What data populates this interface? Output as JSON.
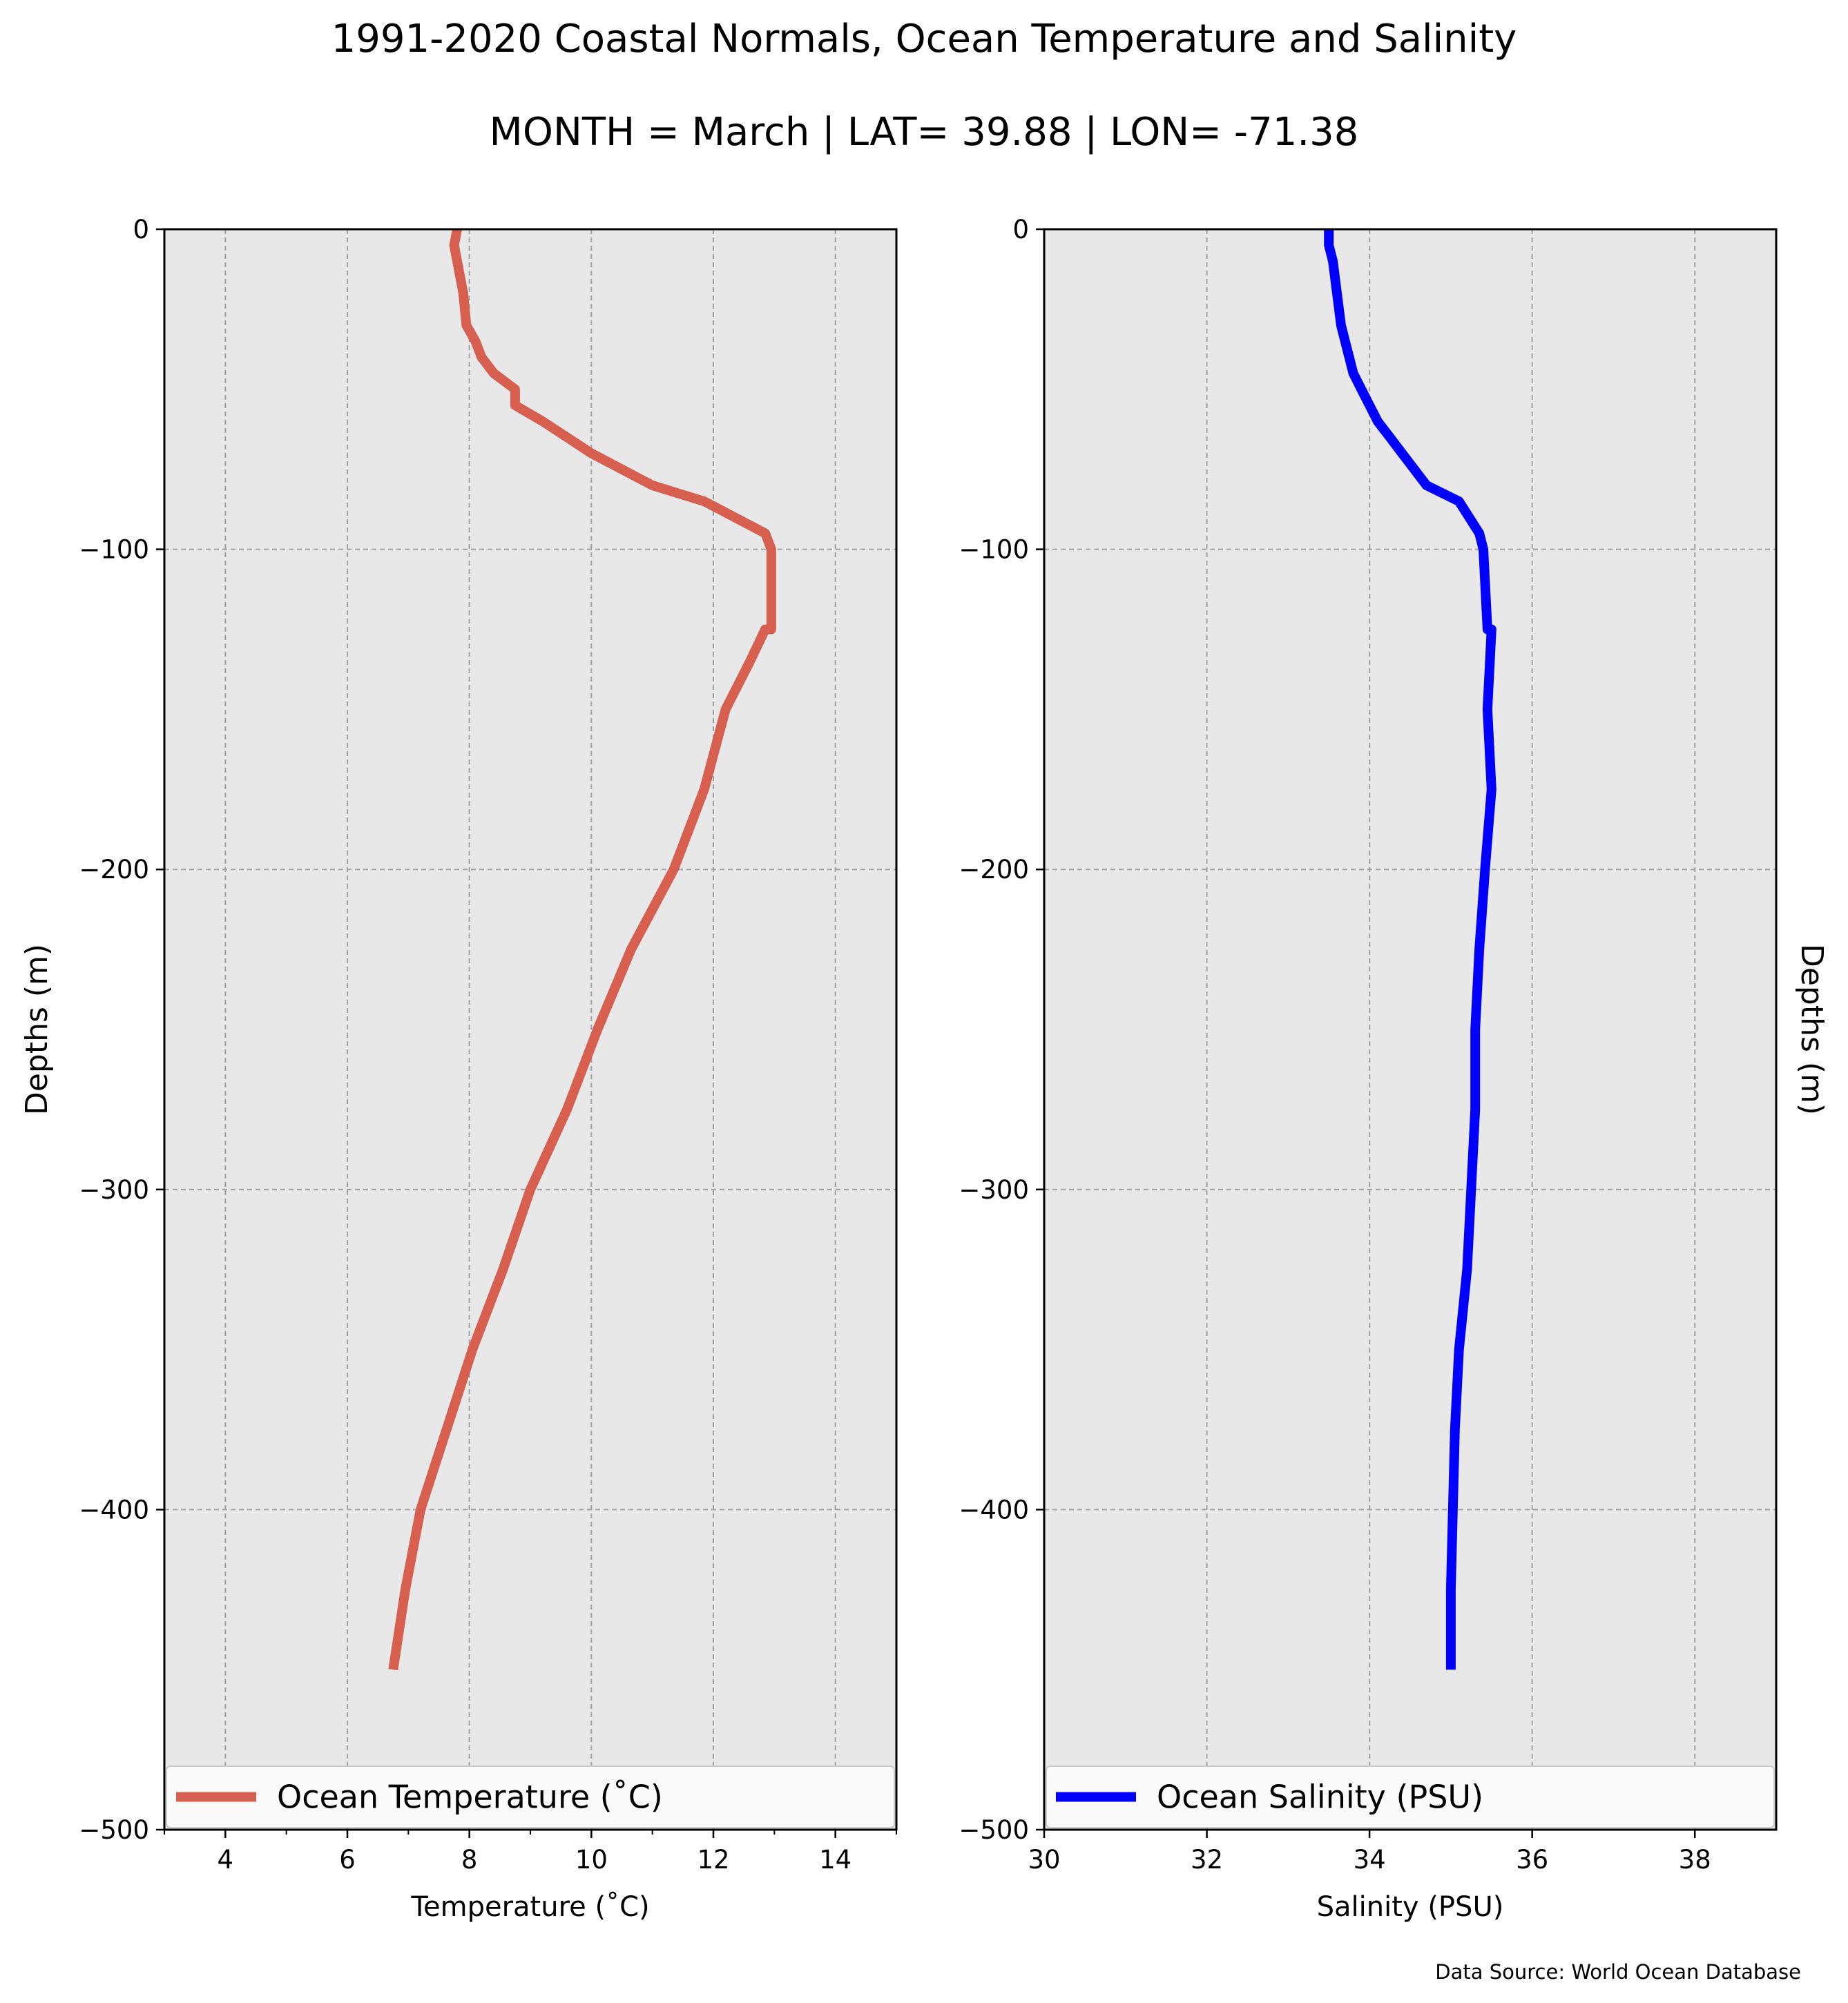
{
  "title": "1991-2020 Coastal Normals, Ocean Temperature and Salinity",
  "subtitle": "MONTH = March | LAT= 39.88 | LON= -71.38",
  "source_note": "Data Source: World Ocean Database",
  "colors": {
    "temperature": "#d65f4f",
    "salinity": "#0000ff",
    "panel_bg": "#e8e8e8",
    "grid": "#a0a0a0"
  },
  "chart_data": [
    {
      "type": "line",
      "xlabel": "Temperature ($^\\circ$C)",
      "xlabel_display": "Temperature (˚C)",
      "ylabel": "Depths (m)",
      "xlim": [
        3,
        15
      ],
      "ylim": [
        -500,
        0
      ],
      "xticks": [
        4,
        6,
        8,
        10,
        12,
        14
      ],
      "xtick_labels": [
        "4",
        "6",
        "8",
        "10",
        "12",
        "14"
      ],
      "yticks": [
        0,
        -100,
        -200,
        -300,
        -400,
        -500
      ],
      "ytick_labels": [
        "0",
        "−100",
        "−200",
        "−300",
        "−400",
        "−500"
      ],
      "grid": true,
      "legend": "bottom",
      "series": [
        {
          "name": "Ocean Temperature (˚C)",
          "x": [
            7.8,
            7.75,
            7.8,
            7.9,
            7.95,
            8.1,
            8.2,
            8.4,
            8.75,
            8.75,
            9.2,
            9.6,
            10.0,
            11.0,
            11.85,
            12.85,
            12.95,
            12.95,
            12.85,
            12.6,
            12.2,
            11.85,
            11.35,
            10.65,
            10.1,
            9.6,
            9.0,
            8.55,
            8.05,
            7.2,
            6.95,
            6.75
          ],
          "y": [
            0,
            -5,
            -10,
            -20,
            -30,
            -35,
            -40,
            -45,
            -50,
            -55,
            -60,
            -65,
            -70,
            -80,
            -85,
            -95,
            -100,
            -125,
            -125,
            -135,
            -150,
            -175,
            -200,
            -225,
            -250,
            -275,
            -300,
            -325,
            -350,
            -400,
            -425,
            -450
          ]
        }
      ]
    },
    {
      "type": "line",
      "xlabel": "Salinity (PSU)",
      "ylabel": "Depths (m)",
      "xlim": [
        30,
        39
      ],
      "ylim": [
        -500,
        0
      ],
      "xticks": [
        30,
        32,
        34,
        36,
        38
      ],
      "xtick_labels": [
        "30",
        "32",
        "34",
        "36",
        "38"
      ],
      "yticks": [
        0,
        -100,
        -200,
        -300,
        -400,
        -500
      ],
      "ytick_labels": [
        "0",
        "−100",
        "−200",
        "−300",
        "−400",
        "−500"
      ],
      "grid": true,
      "legend": "bottom",
      "series": [
        {
          "name": "Ocean Salinity (PSU)",
          "x": [
            33.5,
            33.5,
            33.55,
            33.6,
            33.65,
            33.7,
            33.75,
            33.8,
            33.9,
            34.0,
            34.1,
            34.25,
            34.4,
            34.7,
            35.1,
            35.35,
            35.4,
            35.45,
            35.5,
            35.45,
            35.5,
            35.42,
            35.35,
            35.3,
            35.3,
            35.2,
            35.1,
            35.05,
            35.0,
            35.0
          ],
          "y": [
            0,
            -5,
            -10,
            -20,
            -30,
            -35,
            -40,
            -45,
            -50,
            -55,
            -60,
            -65,
            -70,
            -80,
            -85,
            -95,
            -100,
            -125,
            -125,
            -150,
            -175,
            -200,
            -225,
            -250,
            -275,
            -325,
            -350,
            -375,
            -425,
            -450
          ]
        }
      ]
    }
  ]
}
